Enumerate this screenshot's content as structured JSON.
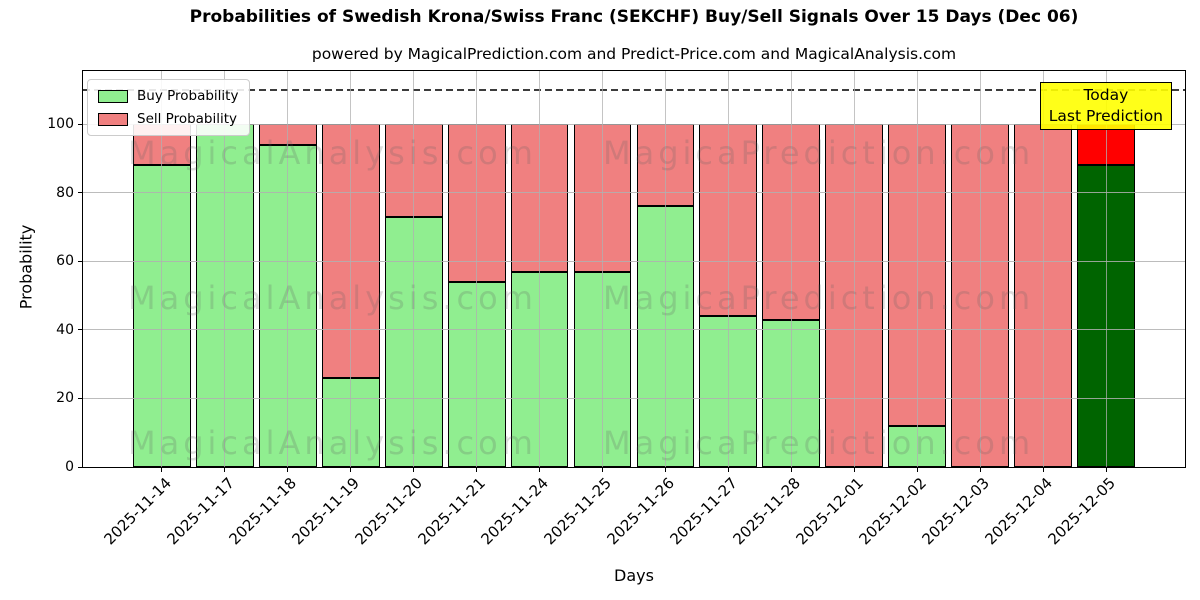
{
  "title": "Probabilities of Swedish Krona/Swiss Franc (SEKCHF) Buy/Sell Signals Over 15 Days (Dec 06)",
  "subtitle": "powered by MagicalPrediction.com and Predict-Price.com and MagicalAnalysis.com",
  "legend": {
    "buy_label": "Buy Probability",
    "sell_label": "Sell Probability"
  },
  "annotation": {
    "line1": "Today",
    "line2": "Last Prediction"
  },
  "watermarks": [
    "MagicalAnalysis.com",
    "MagicaPrediction.com"
  ],
  "axes": {
    "ylabel": "Probability",
    "xlabel": "Days",
    "yticks": [
      0,
      20,
      40,
      60,
      80,
      100
    ]
  },
  "colors": {
    "buy": "#90EE90",
    "sell": "#F08080",
    "today_buy": "#006400",
    "today_sell": "#FF0000",
    "annotation_bg": "rgba(255,255,0,0.9)",
    "grid": "#b0b0b0",
    "dashed_line": "#3c3c3c"
  },
  "chart_data": {
    "type": "bar",
    "stacked": true,
    "title": "Probabilities of Swedish Krona/Swiss Franc (SEKCHF) Buy/Sell Signals Over 15 Days (Dec 06)",
    "xlabel": "Days",
    "ylabel": "Probability",
    "categories": [
      "2025-11-14",
      "2025-11-17",
      "2025-11-18",
      "2025-11-19",
      "2025-11-20",
      "2025-11-21",
      "2025-11-24",
      "2025-11-25",
      "2025-11-26",
      "2025-11-27",
      "2025-11-28",
      "2025-12-01",
      "2025-12-02",
      "2025-12-03",
      "2025-12-04",
      "2025-12-05"
    ],
    "series": [
      {
        "name": "Buy Probability",
        "values": [
          88,
          100,
          94,
          26,
          73,
          54,
          57,
          57,
          76,
          44,
          43,
          0,
          12,
          0,
          0,
          88
        ]
      },
      {
        "name": "Sell Probability",
        "values": [
          12,
          0,
          6,
          74,
          27,
          46,
          43,
          43,
          24,
          56,
          57,
          100,
          88,
          100,
          100,
          12
        ]
      }
    ],
    "today_index": 15,
    "ylim": [
      0,
      115.5
    ],
    "dashed_line_y": 110,
    "grid": true,
    "legend_position": "upper left"
  }
}
